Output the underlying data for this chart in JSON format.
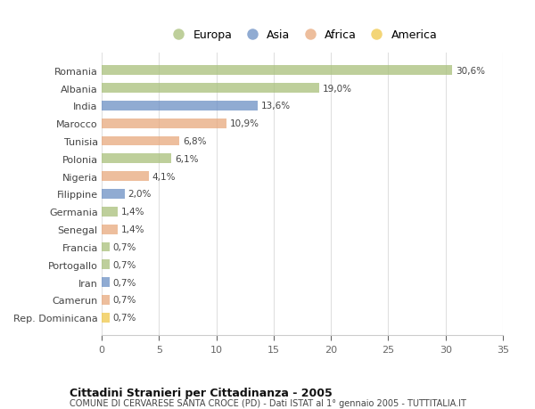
{
  "countries": [
    "Romania",
    "Albania",
    "India",
    "Marocco",
    "Tunisia",
    "Polonia",
    "Nigeria",
    "Filippine",
    "Germania",
    "Senegal",
    "Francia",
    "Portogallo",
    "Iran",
    "Camerun",
    "Rep. Dominicana"
  ],
  "values": [
    30.6,
    19.0,
    13.6,
    10.9,
    6.8,
    6.1,
    4.1,
    2.0,
    1.4,
    1.4,
    0.7,
    0.7,
    0.7,
    0.7,
    0.7
  ],
  "labels": [
    "30,6%",
    "19,0%",
    "13,6%",
    "10,9%",
    "6,8%",
    "6,1%",
    "4,1%",
    "2,0%",
    "1,4%",
    "1,4%",
    "0,7%",
    "0,7%",
    "0,7%",
    "0,7%",
    "0,7%"
  ],
  "continents": [
    "Europa",
    "Europa",
    "Asia",
    "Africa",
    "Africa",
    "Europa",
    "Africa",
    "Asia",
    "Europa",
    "Africa",
    "Europa",
    "Europa",
    "Asia",
    "Africa",
    "America"
  ],
  "continent_colors": {
    "Europa": "#a8c07a",
    "Asia": "#6b8fc4",
    "Africa": "#e8a87c",
    "America": "#f0c84a"
  },
  "legend_order": [
    "Europa",
    "Asia",
    "Africa",
    "America"
  ],
  "title": "Cittadini Stranieri per Cittadinanza - 2005",
  "subtitle": "COMUNE DI CERVARESE SANTA CROCE (PD) - Dati ISTAT al 1° gennaio 2005 - TUTTITALIA.IT",
  "xlim": [
    0,
    35
  ],
  "xticks": [
    0,
    5,
    10,
    15,
    20,
    25,
    30,
    35
  ],
  "background_color": "#ffffff",
  "grid_color": "#e0e0e0",
  "bar_height": 0.55
}
